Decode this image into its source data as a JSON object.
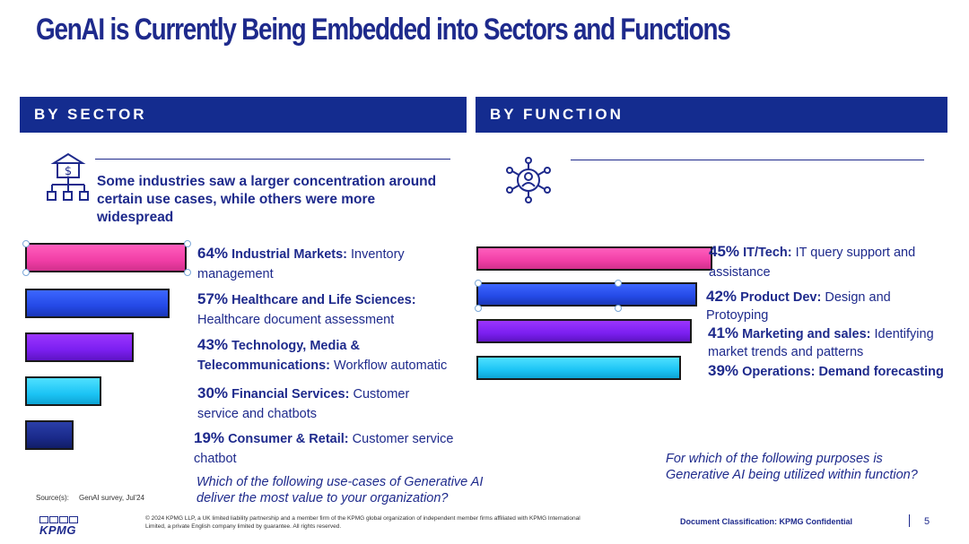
{
  "title": "GenAI is Currently Being Embedded into Sectors and Functions",
  "sector": {
    "heading": "BY SECTOR",
    "intro": "Some industries saw a larger concentration around certain use cases, while others were more widespread",
    "items": [
      {
        "pct": "64%",
        "name": "Industrial Markets:",
        "desc": "Inventory management",
        "value": 64,
        "color": "#f13ea6"
      },
      {
        "pct": "57%",
        "name": "Healthcare and Life Sciences:",
        "desc": "Healthcare document assessment",
        "value": 57,
        "color": "#2449e6"
      },
      {
        "pct": "43%",
        "name": "Technology, Media & Telecommunications:",
        "desc": "Workflow automatic",
        "value": 43,
        "color": "#7b1ff0"
      },
      {
        "pct": "30%",
        "name": "Financial Services:",
        "desc": "Customer service and chatbots",
        "value": 30,
        "color": "#1cc4f5"
      },
      {
        "pct": "19%",
        "name": "Consumer & Retail:",
        "desc": "Customer service chatbot",
        "value": 19,
        "color": "#1a2a8a"
      }
    ],
    "question": "Which of the following use-cases of Generative AI deliver the most value to your organization?"
  },
  "function": {
    "heading": "BY FUNCTION",
    "items": [
      {
        "pct": "45%",
        "name": "IT/Tech:",
        "desc": "IT query support and assistance",
        "value": 45,
        "color": "#f13ea6"
      },
      {
        "pct": "42%",
        "name": "Product Dev:",
        "desc": "Design and Protoyping",
        "value": 42,
        "color": "#2449e6"
      },
      {
        "pct": "41%",
        "name": "Marketing and sales:",
        "desc": "Identifying market trends and patterns",
        "value": 41,
        "color": "#7b1ff0"
      },
      {
        "pct": "39%",
        "name": "Operations: Demand forecasting",
        "desc": "",
        "value": 39,
        "color": "#1cc4f5"
      }
    ],
    "question": "For which of the following purposes is Generative AI being utilized within function?"
  },
  "source": {
    "label": "Source(s):",
    "text": "GenAI survey, Jul'24"
  },
  "footer": {
    "legal1": "© 2024 KPMG LLP, a UK limited liability partnership and a member firm of the KPMG global organization of independent member firms affiliated with KPMG International",
    "legal2": "Limited, a private English company limited by guarantee. All rights reserved.",
    "logo": "KPMG",
    "classification": "Document Classification: KPMG Confidential",
    "page": "5"
  }
}
